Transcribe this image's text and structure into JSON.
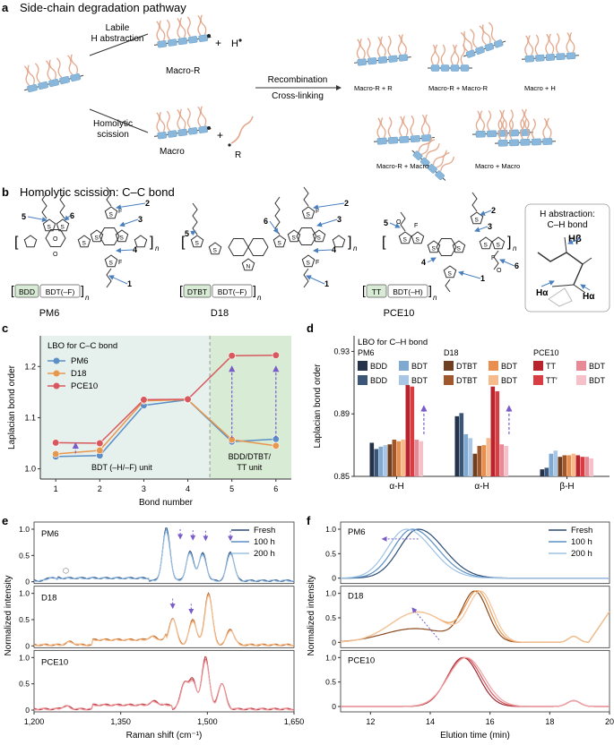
{
  "colors": {
    "chain": "#8ab8dc",
    "sidechain": "#e3a98e",
    "pm6": "#5b8fc6",
    "d18": "#e8974f",
    "pce10": "#d9585e",
    "bg_cc": "#e6f1ee",
    "bg_green": "#d8ebd5",
    "arrow": "#7a5cc8"
  },
  "panel_a": {
    "letter": "a",
    "title": "Side-chain degradation pathway",
    "labile_1": "Labile",
    "labile_2": "H abstraction",
    "homo_1": "Homolytic",
    "homo_2": "scission",
    "macro_r": "Macro-R",
    "macro": "Macro",
    "h_rad": "H",
    "r_rad": "R",
    "recomb": "Recombination",
    "crosslink": "Cross-linking",
    "p1": "Macro-R  +  R",
    "p2": "Macro-R  +  Macro-R",
    "p3": "Macro  + H",
    "p4": "Macro-R + Macro",
    "p5": "Macro  +  Macro"
  },
  "panel_b": {
    "letter": "b",
    "title": "Homolytic scission: C–C bond",
    "mol_names": [
      "PM6",
      "D18",
      "PCE10"
    ],
    "units": {
      "pm6": [
        "BDD",
        "BDT(–F)"
      ],
      "d18": [
        "DTBT",
        "BDT(–F)"
      ],
      "pce10": [
        "TT",
        "BDT(–H)"
      ]
    },
    "n_label": "n",
    "bond_nums": [
      "1",
      "2",
      "3",
      "4",
      "5",
      "6"
    ],
    "inset_title_1": "H abstraction:",
    "inset_title_2": "C–H bond",
    "h_beta": "Hβ",
    "h_alpha": "Hα"
  },
  "panel_c": {
    "letter": "c",
    "legend_title": "LBO for C–C bond",
    "region1": "BDT (–H/–F) unit",
    "region2": [
      "BDD/DTBT/",
      "TT unit"
    ],
    "chart_data": {
      "type": "line",
      "title": "LBO for C–C bond",
      "xlabel": "Bond number",
      "ylabel": "Laplacian bond order",
      "x": [
        1,
        2,
        3,
        4,
        5,
        6
      ],
      "xticks": [
        "1",
        "2",
        "3",
        "4",
        "5",
        "6"
      ],
      "ylim": [
        0.98,
        1.26
      ],
      "yticks": [
        "1.0",
        "1.1",
        "1.2"
      ],
      "series": [
        {
          "name": "PM6",
          "values": [
            1.024,
            1.026,
            1.124,
            1.135,
            1.053,
            1.058
          ]
        },
        {
          "name": "D18",
          "values": [
            1.029,
            1.036,
            1.133,
            1.135,
            1.057,
            1.045
          ]
        },
        {
          "name": "PCE10",
          "values": [
            1.051,
            1.05,
            1.135,
            1.136,
            1.221,
            1.222
          ]
        }
      ]
    }
  },
  "panel_d": {
    "letter": "d",
    "legend_title": "LBO for C–H bond",
    "group_titles": [
      "PM6",
      "D18",
      "PCE10"
    ],
    "legend": [
      [
        "BDD",
        "BDD"
      ],
      [
        "BDT",
        "BDT"
      ],
      [
        "DTBT",
        "DTBT"
      ],
      [
        "BDT",
        "BDT"
      ],
      [
        "TT",
        "TT′"
      ],
      [
        "BDT",
        "BDT"
      ]
    ],
    "chart_data": {
      "type": "bar",
      "ylabel": "Laplacian bond order",
      "categories": [
        "α-H",
        "α-H",
        "β-H"
      ],
      "ylim": [
        0.85,
        0.94
      ],
      "yticks": [
        "0.85",
        "0.89",
        "0.93"
      ],
      "series": [
        {
          "name": "PM6 BDD",
          "values": [
            0.8715,
            0.8885,
            0.8545
          ]
        },
        {
          "name": "PM6 BDD'",
          "values": [
            0.8675,
            0.8905,
            0.8555
          ]
        },
        {
          "name": "PM6 BDT",
          "values": [
            0.869,
            0.877,
            0.8645
          ]
        },
        {
          "name": "PM6 BDT'",
          "values": [
            0.87,
            0.8745,
            0.8665
          ]
        },
        {
          "name": "D18 DTBT",
          "values": [
            0.8705,
            0.8645,
            0.8625
          ]
        },
        {
          "name": "D18 DTBT'",
          "values": [
            0.8735,
            0.8695,
            0.8635
          ]
        },
        {
          "name": "D18 BDT",
          "values": [
            0.8725,
            0.87,
            0.8635
          ]
        },
        {
          "name": "D18 BDT'",
          "values": [
            0.8735,
            0.8745,
            0.8645
          ]
        },
        {
          "name": "PCE10 TT",
          "values": [
            0.9085,
            0.9075,
            0.8635
          ]
        },
        {
          "name": "PCE10 TT'",
          "values": [
            0.9075,
            0.9045,
            0.8625
          ]
        },
        {
          "name": "PCE10 BDT",
          "values": [
            0.8735,
            0.8705,
            0.8625
          ]
        },
        {
          "name": "PCE10 BDT'",
          "values": [
            0.8725,
            0.8695,
            0.8615
          ]
        }
      ]
    }
  },
  "panel_e": {
    "letter": "e",
    "labels": [
      "PM6",
      "D18",
      "PCE10"
    ],
    "legend": [
      "Fresh",
      "100 h",
      "200 h"
    ],
    "chart_data": {
      "type": "line",
      "xlabel": "Raman shift (cm⁻¹)",
      "ylabel": "Normalized intensity",
      "xlim": [
        1200,
        1650
      ],
      "xticks": [
        "1,200",
        "1,350",
        "1,500",
        "1,650"
      ],
      "ylim": [
        0,
        1.0
      ],
      "yticks": [
        "0",
        "0.5",
        "1.0"
      ],
      "peaks": {
        "PM6": [
          [
            1230,
            0.07
          ],
          [
            1429,
            1.0
          ],
          [
            1470,
            0.55
          ],
          [
            1492,
            0.52
          ],
          [
            1540,
            0.55
          ]
        ],
        "D18": [
          [
            1262,
            0.06
          ],
          [
            1405,
            0.06
          ],
          [
            1440,
            0.52
          ],
          [
            1475,
            0.48
          ],
          [
            1502,
            1.0
          ],
          [
            1540,
            0.3
          ]
        ],
        "PCE10": [
          [
            1255,
            0.06
          ],
          [
            1408,
            0.07
          ],
          [
            1460,
            0.5
          ],
          [
            1475,
            0.55
          ],
          [
            1497,
            1.0
          ],
          [
            1525,
            0.5
          ]
        ]
      }
    }
  },
  "panel_f": {
    "letter": "f",
    "labels": [
      "PM6",
      "D18",
      "PCE10"
    ],
    "legend": [
      "Fresh",
      "100 h",
      "200 h"
    ],
    "chart_data": {
      "type": "line",
      "xlabel": "Elution time (min)",
      "ylabel": "Normalized intensity",
      "xlim": [
        11,
        20
      ],
      "xticks": [
        "12",
        "14",
        "16",
        "18",
        "20"
      ],
      "ylim": [
        0,
        1.0
      ],
      "yticks": [
        "0",
        "0.5",
        "1.0"
      ],
      "series": [
        {
          "sample": "PM6",
          "name": "Fresh",
          "peak": 13.6
        },
        {
          "sample": "PM6",
          "name": "100 h",
          "peak": 13.4
        },
        {
          "sample": "PM6",
          "name": "200 h",
          "peak": 13.2
        },
        {
          "sample": "D18",
          "name": "Fresh",
          "peak": 15.5
        },
        {
          "sample": "D18",
          "name": "100 h",
          "peak": 15.6
        },
        {
          "sample": "D18",
          "name": "200 h",
          "peak": 15.7
        },
        {
          "sample": "PCE10",
          "name": "Fresh",
          "peak": 15.1
        },
        {
          "sample": "PCE10",
          "name": "100 h",
          "peak": 15.15
        },
        {
          "sample": "PCE10",
          "name": "200 h",
          "peak": 15.2
        }
      ]
    }
  }
}
